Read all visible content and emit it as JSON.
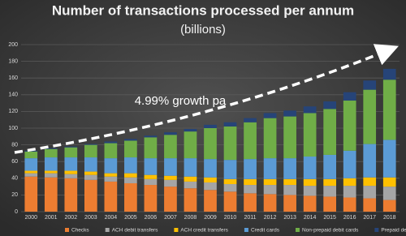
{
  "chart_data": {
    "type": "stacked_bar",
    "title": "Number of transactions processed per annum",
    "subtitle": "(billions)",
    "annotation": "4.99% growth pa",
    "categories": [
      "2000",
      "2001",
      "2002",
      "2003",
      "2004",
      "2005",
      "2006",
      "2007",
      "2008",
      "2009",
      "2010",
      "2011",
      "2012",
      "2013",
      "2014",
      "2015",
      "2016",
      "2017",
      "2018"
    ],
    "series": [
      {
        "name": "Checks",
        "color": "#ed7d31",
        "values": [
          42,
          41,
          40,
          38,
          36,
          34,
          32,
          30,
          28,
          26,
          24,
          22,
          21,
          20,
          19,
          18,
          17,
          16,
          14
        ]
      },
      {
        "name": "ACH debit transfers",
        "color": "#a5a5a5",
        "values": [
          4,
          5,
          5,
          6,
          6,
          7,
          7,
          8,
          8,
          9,
          9,
          10,
          11,
          12,
          12,
          13,
          14,
          15,
          16
        ]
      },
      {
        "name": "ACH credit transfers",
        "color": "#ffc000",
        "values": [
          3,
          3,
          4,
          4,
          4,
          5,
          5,
          5,
          6,
          6,
          6,
          7,
          7,
          7,
          8,
          8,
          9,
          10,
          11
        ]
      },
      {
        "name": "Credit cards",
        "color": "#5b9bd5",
        "values": [
          15,
          16,
          16,
          17,
          18,
          19,
          20,
          21,
          22,
          22,
          23,
          24,
          25,
          25,
          27,
          29,
          33,
          40,
          45
        ]
      },
      {
        "name": "Non-prepaid debit cards",
        "color": "#70ad47",
        "values": [
          8,
          10,
          12,
          15,
          18,
          20,
          25,
          28,
          32,
          37,
          40,
          44,
          48,
          50,
          52,
          55,
          60,
          65,
          72
        ]
      },
      {
        "name": "Prepaid debit cards",
        "color": "#264478",
        "values": [
          1,
          1,
          1,
          1,
          2,
          2,
          2,
          3,
          3,
          4,
          5,
          5,
          6,
          7,
          8,
          9,
          10,
          11,
          13
        ]
      }
    ],
    "ylim": [
      0,
      200
    ],
    "yticks": [
      0,
      20,
      40,
      60,
      80,
      100,
      120,
      140,
      160,
      180,
      200
    ],
    "grid": true
  }
}
